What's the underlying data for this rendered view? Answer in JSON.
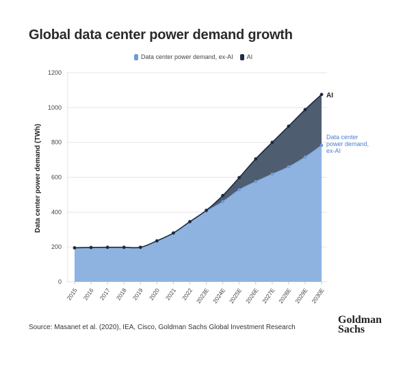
{
  "chart_data": {
    "type": "area",
    "title": "Global data center power demand growth",
    "ylabel": "Data center power demand (TWh)",
    "xlabel": "",
    "ylim": [
      0,
      1200
    ],
    "yticks": [
      0,
      200,
      400,
      600,
      800,
      1000,
      1200
    ],
    "grid": true,
    "legend_placement": "top-center",
    "categories": [
      "2015",
      "2016",
      "2017",
      "2018",
      "2019",
      "2020",
      "2021",
      "2022",
      "2023E",
      "2024E",
      "2025E",
      "2026E",
      "2027E",
      "2028E",
      "2029E",
      "2030E"
    ],
    "series": [
      {
        "name": "Data center power demand, ex-AI",
        "color": "#8eb3e0",
        "end_label": "Data center power demand, ex-AI",
        "values": [
          195,
          197,
          198,
          198,
          198,
          235,
          280,
          345,
          405,
          460,
          528,
          575,
          618,
          660,
          716,
          783
        ]
      },
      {
        "name": "AI",
        "color": "#2e3d52",
        "end_label": "AI",
        "values": [
          195,
          197,
          198,
          198,
          198,
          235,
          280,
          345,
          410,
          495,
          598,
          705,
          800,
          893,
          988,
          1075
        ]
      }
    ]
  },
  "legend": {
    "items": [
      {
        "label": "Data center power demand, ex-AI",
        "color": "#6f9ad6"
      },
      {
        "label": "AI",
        "color": "#1f2d45"
      }
    ]
  },
  "source": "Source: Masanet et al. (2020), IEA, Cisco, Goldman Sachs Global Investment Research",
  "logo": {
    "line1": "Goldman",
    "line2": "Sachs"
  }
}
